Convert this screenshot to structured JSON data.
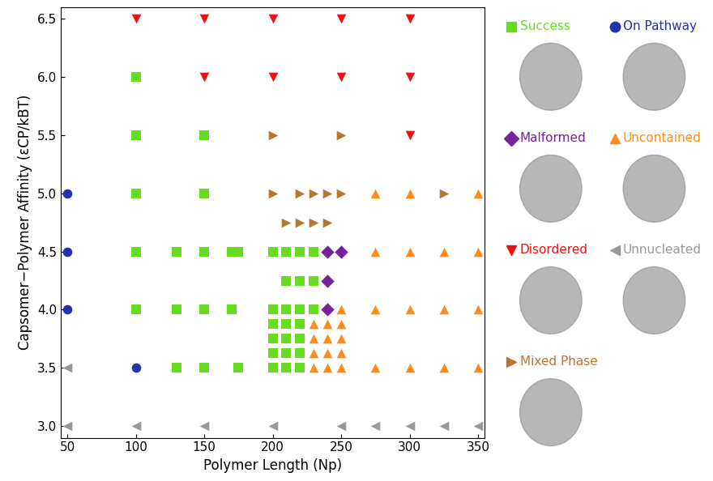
{
  "chart_data": {
    "type": "scatter",
    "x_label": "Polymer Length (Np)",
    "y_label": "Capsomer−Polymer Affinity (εCP/kBT)",
    "xlim": [
      45,
      355
    ],
    "xticks": [
      50,
      100,
      150,
      200,
      250,
      300,
      350
    ],
    "ylim": [
      2.9,
      6.6
    ],
    "yticks": [
      3.0,
      3.5,
      4.0,
      4.5,
      5.0,
      5.5,
      6.0,
      6.5
    ],
    "grid": false,
    "series": [
      {
        "name": "Success",
        "color": "#66dd22",
        "marker": "square",
        "x": [
          100,
          100,
          150,
          100,
          150,
          100,
          130,
          150,
          170,
          175,
          200,
          210,
          220,
          230,
          210,
          220,
          230,
          100,
          130,
          150,
          170,
          200,
          210,
          220,
          230,
          200,
          210,
          220,
          200,
          210,
          220,
          200,
          210,
          220,
          130,
          150,
          175,
          200,
          210,
          220
        ],
        "y": [
          6.0,
          5.5,
          5.5,
          5.0,
          5.0,
          4.5,
          4.5,
          4.5,
          4.5,
          4.5,
          4.5,
          4.5,
          4.5,
          4.5,
          4.25,
          4.25,
          4.25,
          4.0,
          4.0,
          4.0,
          4.0,
          4.0,
          4.0,
          4.0,
          4.0,
          3.875,
          3.875,
          3.875,
          3.75,
          3.75,
          3.75,
          3.625,
          3.625,
          3.625,
          3.5,
          3.5,
          3.5,
          3.5,
          3.5,
          3.5
        ]
      },
      {
        "name": "On Pathway",
        "color": "#2233aa",
        "marker": "circle",
        "x": [
          50,
          50,
          50,
          100
        ],
        "y": [
          5.0,
          4.5,
          4.0,
          3.5
        ]
      },
      {
        "name": "Malformed",
        "color": "#772299",
        "marker": "diamond",
        "x": [
          240,
          250,
          240,
          240
        ],
        "y": [
          4.5,
          4.5,
          4.25,
          4.0
        ]
      },
      {
        "name": "Uncontained",
        "color": "#ff8c1a",
        "marker": "triangle_up",
        "x": [
          275,
          300,
          350,
          275,
          300,
          325,
          350,
          250,
          275,
          300,
          325,
          350,
          230,
          240,
          250,
          230,
          240,
          250,
          230,
          240,
          250,
          230,
          240,
          250,
          275,
          300,
          325,
          350
        ],
        "y": [
          5.0,
          5.0,
          5.0,
          4.5,
          4.5,
          4.5,
          4.5,
          4.0,
          4.0,
          4.0,
          4.0,
          4.0,
          3.875,
          3.875,
          3.875,
          3.75,
          3.75,
          3.75,
          3.625,
          3.625,
          3.625,
          3.5,
          3.5,
          3.5,
          3.5,
          3.5,
          3.5,
          3.5
        ]
      },
      {
        "name": "Disordered",
        "color": "#ee1111",
        "marker": "triangle_down",
        "x": [
          100,
          150,
          200,
          250,
          300,
          150,
          200,
          250,
          300,
          300
        ],
        "y": [
          6.5,
          6.5,
          6.5,
          6.5,
          6.5,
          6.0,
          6.0,
          6.0,
          6.0,
          5.5
        ]
      },
      {
        "name": "Unnucleated",
        "color": "#999999",
        "marker": "triangle_left",
        "x": [
          50,
          50,
          100,
          150,
          200,
          250,
          275,
          300,
          325,
          350
        ],
        "y": [
          3.5,
          3.0,
          3.0,
          3.0,
          3.0,
          3.0,
          3.0,
          3.0,
          3.0,
          3.0
        ]
      },
      {
        "name": "Mixed Phase",
        "color": "#b8762e",
        "marker": "triangle_right",
        "x": [
          200,
          250,
          200,
          220,
          230,
          240,
          250,
          325,
          210,
          220,
          230,
          240
        ],
        "y": [
          5.5,
          5.5,
          5.0,
          5.0,
          5.0,
          5.0,
          5.0,
          5.0,
          4.75,
          4.75,
          4.75,
          4.75
        ]
      }
    ]
  }
}
